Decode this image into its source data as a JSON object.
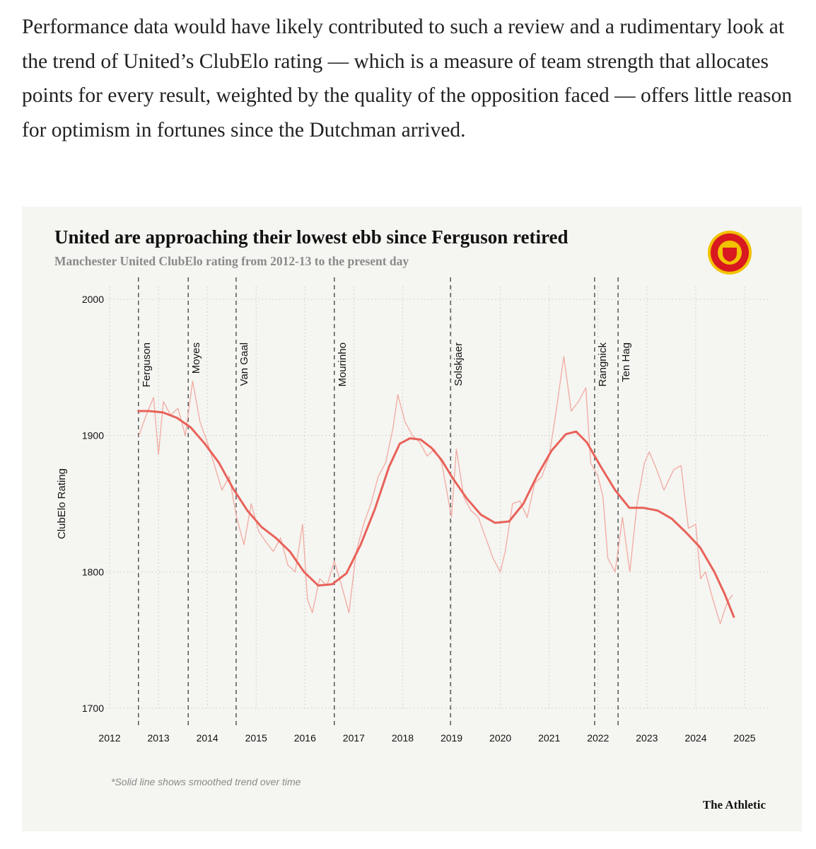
{
  "article": {
    "paragraph": "Performance data would have likely contributed to such a review and a rudimentary look at the trend of United’s ClubElo rating — which is a measure of team strength that allocates points for every result, weighted by the quality of the opposition faced — offers little reason for optimism in fortunes since the Dutchman arrived."
  },
  "chart_data": {
    "type": "line",
    "title": "United are approaching their lowest ebb since Ferguson retired",
    "subtitle": "Manchester United ClubElo rating from 2012-13 to the present day",
    "y_label": "ClubElo Rating",
    "footnote": "*Solid line shows smoothed trend over time",
    "source": "The Athletic",
    "xlim": [
      2012,
      2025
    ],
    "xticks": [
      2012,
      2013,
      2014,
      2015,
      2016,
      2017,
      2018,
      2019,
      2020,
      2021,
      2022,
      2023,
      2024,
      2025
    ],
    "ylim": [
      1700,
      2000
    ],
    "yticks": [
      1700,
      1800,
      1900,
      2000
    ],
    "grid": true,
    "events": [
      {
        "label": "Ferguson",
        "x": 2012.59
      },
      {
        "label": "Moyes",
        "x": 2013.61
      },
      {
        "label": "Van Gaal",
        "x": 2014.59
      },
      {
        "label": "Mourinho",
        "x": 2016.6
      },
      {
        "label": "Solskjaer",
        "x": 2018.98
      },
      {
        "label": "Rangnick",
        "x": 2021.93
      },
      {
        "label": "Ten Hag",
        "x": 2022.41
      }
    ],
    "series": [
      {
        "color": "#f2aaa2",
        "x": [
          2012.6,
          2012.75,
          2012.9,
          2013.0,
          2013.1,
          2013.25,
          2013.4,
          2013.55,
          2013.7,
          2013.85,
          2014.0,
          2014.15,
          2014.3,
          2014.45,
          2014.6,
          2014.75,
          2014.9,
          2015.05,
          2015.2,
          2015.35,
          2015.5,
          2015.65,
          2015.8,
          2015.95,
          2016.05,
          2016.15,
          2016.3,
          2016.45,
          2016.6,
          2016.75,
          2016.9,
          2017.05,
          2017.2,
          2017.35,
          2017.5,
          2017.65,
          2017.8,
          2017.9,
          2018.05,
          2018.2,
          2018.35,
          2018.5,
          2018.65,
          2018.8,
          2019.0,
          2019.1,
          2019.25,
          2019.4,
          2019.55,
          2019.7,
          2019.85,
          2020.0,
          2020.1,
          2020.25,
          2020.4,
          2020.55,
          2020.7,
          2020.85,
          2021.0,
          2021.15,
          2021.3,
          2021.45,
          2021.6,
          2021.75,
          2021.85,
          2022.0,
          2022.1,
          2022.2,
          2022.35,
          2022.5,
          2022.65,
          2022.8,
          2022.95,
          2023.05,
          2023.2,
          2023.35,
          2023.55,
          2023.7,
          2023.85,
          2024.0,
          2024.1,
          2024.2,
          2024.35,
          2024.5,
          2024.65,
          2024.75
        ],
        "values": [
          1900,
          1915,
          1928,
          1886,
          1925,
          1915,
          1920,
          1900,
          1940,
          1910,
          1895,
          1878,
          1860,
          1870,
          1840,
          1820,
          1850,
          1830,
          1822,
          1815,
          1825,
          1805,
          1800,
          1835,
          1780,
          1770,
          1795,
          1790,
          1808,
          1790,
          1770,
          1815,
          1835,
          1850,
          1870,
          1880,
          1905,
          1930,
          1910,
          1900,
          1895,
          1885,
          1890,
          1880,
          1840,
          1890,
          1855,
          1845,
          1840,
          1825,
          1810,
          1800,
          1815,
          1850,
          1852,
          1840,
          1865,
          1870,
          1885,
          1920,
          1958,
          1918,
          1925,
          1935,
          1880,
          1870,
          1855,
          1810,
          1800,
          1840,
          1800,
          1850,
          1880,
          1888,
          1875,
          1860,
          1875,
          1878,
          1832,
          1835,
          1795,
          1800,
          1780,
          1762,
          1778,
          1783
        ]
      },
      {
        "color": "#e8625a",
        "x": [
          2012.59,
          2012.8,
          2013.09,
          2013.38,
          2013.66,
          2013.95,
          2014.24,
          2014.53,
          2014.82,
          2015.11,
          2015.4,
          2015.69,
          2015.98,
          2016.27,
          2016.56,
          2016.85,
          2017.14,
          2017.43,
          2017.72,
          2017.94,
          2018.15,
          2018.37,
          2018.59,
          2018.8,
          2019.02,
          2019.31,
          2019.6,
          2019.89,
          2020.18,
          2020.47,
          2020.76,
          2021.05,
          2021.34,
          2021.55,
          2021.77,
          2022.06,
          2022.35,
          2022.64,
          2022.93,
          2023.22,
          2023.51,
          2023.8,
          2024.09,
          2024.38,
          2024.59,
          2024.78
        ],
        "values": [
          1918,
          1918,
          1917,
          1913,
          1906,
          1894,
          1880,
          1861,
          1845,
          1833,
          1825,
          1815,
          1800,
          1790,
          1791,
          1799,
          1820,
          1846,
          1877,
          1894,
          1898,
          1897,
          1891,
          1882,
          1869,
          1854,
          1842,
          1836,
          1837,
          1850,
          1871,
          1889,
          1901,
          1903,
          1895,
          1877,
          1860,
          1847,
          1847,
          1845,
          1839,
          1829,
          1818,
          1800,
          1784,
          1767
        ]
      }
    ]
  }
}
